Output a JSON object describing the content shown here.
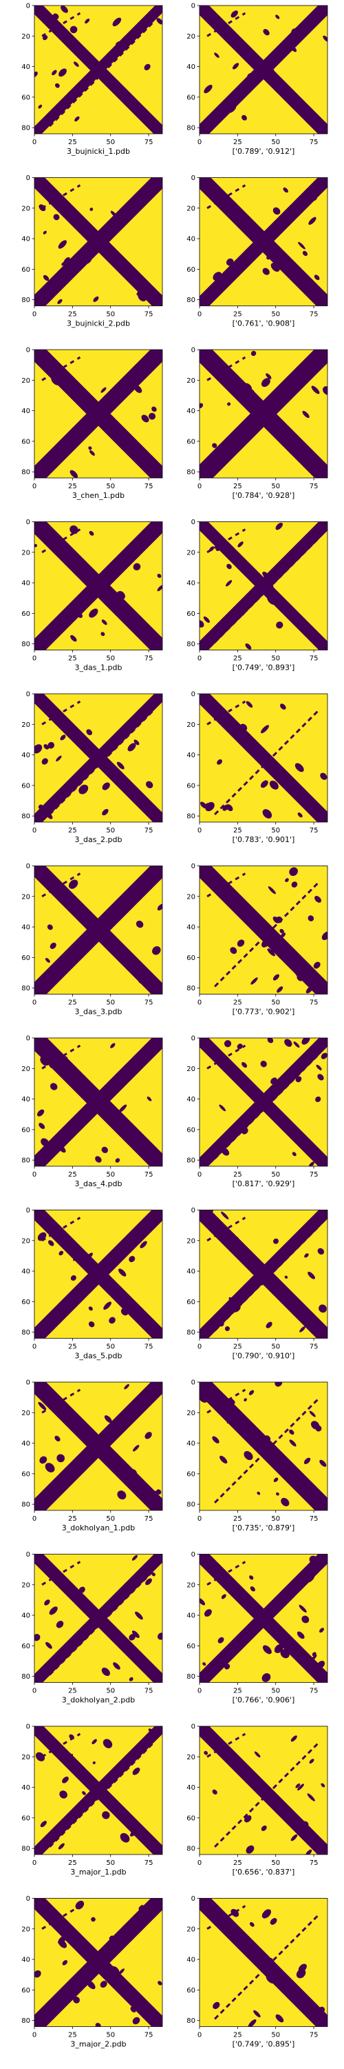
{
  "figure": {
    "yellow": "#fde725",
    "purple": "#440154"
  },
  "chart_data": [
    {
      "type": "heatmap",
      "label": "3_bujnicki_1.pdb",
      "xlim": [
        0,
        84
      ],
      "ylim": [
        84,
        0
      ],
      "x_ticks": [
        0,
        25,
        50,
        75
      ],
      "y_ticks": [
        0,
        20,
        40,
        60,
        80
      ]
    },
    {
      "type": "heatmap",
      "label": "['0.789', '0.912']",
      "xlim": [
        0,
        84
      ],
      "ylim": [
        84,
        0
      ],
      "x_ticks": [
        0,
        25,
        50,
        75
      ],
      "y_ticks": [
        0,
        20,
        40,
        60,
        80
      ]
    },
    {
      "type": "heatmap",
      "label": "3_bujnicki_2.pdb",
      "xlim": [
        0,
        84
      ],
      "ylim": [
        84,
        0
      ],
      "x_ticks": [
        0,
        25,
        50,
        75
      ],
      "y_ticks": [
        0,
        20,
        40,
        60,
        80
      ]
    },
    {
      "type": "heatmap",
      "label": "['0.761', '0.908']",
      "xlim": [
        0,
        84
      ],
      "ylim": [
        84,
        0
      ],
      "x_ticks": [
        0,
        25,
        50,
        75
      ],
      "y_ticks": [
        0,
        20,
        40,
        60,
        80
      ]
    },
    {
      "type": "heatmap",
      "label": "3_chen_1.pdb",
      "xlim": [
        0,
        84
      ],
      "ylim": [
        84,
        0
      ],
      "x_ticks": [
        0,
        25,
        50,
        75
      ],
      "y_ticks": [
        0,
        20,
        40,
        60,
        80
      ]
    },
    {
      "type": "heatmap",
      "label": "['0.784', '0.928']",
      "xlim": [
        0,
        84
      ],
      "ylim": [
        84,
        0
      ],
      "x_ticks": [
        0,
        25,
        50,
        75
      ],
      "y_ticks": [
        0,
        20,
        40,
        60,
        80
      ]
    },
    {
      "type": "heatmap",
      "label": "3_das_1.pdb",
      "xlim": [
        0,
        84
      ],
      "ylim": [
        84,
        0
      ],
      "x_ticks": [
        0,
        25,
        50,
        75
      ],
      "y_ticks": [
        0,
        20,
        40,
        60,
        80
      ]
    },
    {
      "type": "heatmap",
      "label": "['0.749', '0.893']",
      "xlim": [
        0,
        84
      ],
      "ylim": [
        84,
        0
      ],
      "x_ticks": [
        0,
        25,
        50,
        75
      ],
      "y_ticks": [
        0,
        20,
        40,
        60,
        80
      ]
    },
    {
      "type": "heatmap",
      "label": "3_das_2.pdb",
      "xlim": [
        0,
        84
      ],
      "ylim": [
        84,
        0
      ],
      "x_ticks": [
        0,
        25,
        50,
        75
      ],
      "y_ticks": [
        0,
        20,
        40,
        60,
        80
      ]
    },
    {
      "type": "heatmap",
      "label": "['0.783', '0.901']",
      "xlim": [
        0,
        84
      ],
      "ylim": [
        84,
        0
      ],
      "x_ticks": [
        0,
        25,
        50,
        75
      ],
      "y_ticks": [
        0,
        20,
        40,
        60,
        80
      ]
    },
    {
      "type": "heatmap",
      "label": "3_das_3.pdb",
      "xlim": [
        0,
        84
      ],
      "ylim": [
        84,
        0
      ],
      "x_ticks": [
        0,
        25,
        50,
        75
      ],
      "y_ticks": [
        0,
        20,
        40,
        60,
        80
      ]
    },
    {
      "type": "heatmap",
      "label": "['0.773', '0.902']",
      "xlim": [
        0,
        84
      ],
      "ylim": [
        84,
        0
      ],
      "x_ticks": [
        0,
        25,
        50,
        75
      ],
      "y_ticks": [
        0,
        20,
        40,
        60,
        80
      ]
    },
    {
      "type": "heatmap",
      "label": "3_das_4.pdb",
      "xlim": [
        0,
        84
      ],
      "ylim": [
        84,
        0
      ],
      "x_ticks": [
        0,
        25,
        50,
        75
      ],
      "y_ticks": [
        0,
        20,
        40,
        60,
        80
      ]
    },
    {
      "type": "heatmap",
      "label": "['0.817', '0.929']",
      "xlim": [
        0,
        84
      ],
      "ylim": [
        84,
        0
      ],
      "x_ticks": [
        0,
        25,
        50,
        75
      ],
      "y_ticks": [
        0,
        20,
        40,
        60,
        80
      ]
    },
    {
      "type": "heatmap",
      "label": "3_das_5.pdb",
      "xlim": [
        0,
        84
      ],
      "ylim": [
        84,
        0
      ],
      "x_ticks": [
        0,
        25,
        50,
        75
      ],
      "y_ticks": [
        0,
        20,
        40,
        60,
        80
      ]
    },
    {
      "type": "heatmap",
      "label": "['0.790', '0.910']",
      "xlim": [
        0,
        84
      ],
      "ylim": [
        84,
        0
      ],
      "x_ticks": [
        0,
        25,
        50,
        75
      ],
      "y_ticks": [
        0,
        20,
        40,
        60,
        80
      ]
    },
    {
      "type": "heatmap",
      "label": "3_dokholyan_1.pdb",
      "xlim": [
        0,
        84
      ],
      "ylim": [
        84,
        0
      ],
      "x_ticks": [
        0,
        25,
        50,
        75
      ],
      "y_ticks": [
        0,
        20,
        40,
        60,
        80
      ]
    },
    {
      "type": "heatmap",
      "label": "['0.735', '0.879']",
      "xlim": [
        0,
        84
      ],
      "ylim": [
        84,
        0
      ],
      "x_ticks": [
        0,
        25,
        50,
        75
      ],
      "y_ticks": [
        0,
        20,
        40,
        60,
        80
      ]
    },
    {
      "type": "heatmap",
      "label": "3_dokholyan_2.pdb",
      "xlim": [
        0,
        84
      ],
      "ylim": [
        84,
        0
      ],
      "x_ticks": [
        0,
        25,
        50,
        75
      ],
      "y_ticks": [
        0,
        20,
        40,
        60,
        80
      ]
    },
    {
      "type": "heatmap",
      "label": "['0.766', '0.906']",
      "xlim": [
        0,
        84
      ],
      "ylim": [
        84,
        0
      ],
      "x_ticks": [
        0,
        25,
        50,
        75
      ],
      "y_ticks": [
        0,
        20,
        40,
        60,
        80
      ]
    },
    {
      "type": "heatmap",
      "label": "3_major_1.pdb",
      "xlim": [
        0,
        84
      ],
      "ylim": [
        84,
        0
      ],
      "x_ticks": [
        0,
        25,
        50,
        75
      ],
      "y_ticks": [
        0,
        20,
        40,
        60,
        80
      ]
    },
    {
      "type": "heatmap",
      "label": "['0.656', '0.837']",
      "xlim": [
        0,
        84
      ],
      "ylim": [
        84,
        0
      ],
      "x_ticks": [
        0,
        25,
        50,
        75
      ],
      "y_ticks": [
        0,
        20,
        40,
        60,
        80
      ]
    },
    {
      "type": "heatmap",
      "label": "3_major_2.pdb",
      "xlim": [
        0,
        84
      ],
      "ylim": [
        84,
        0
      ],
      "x_ticks": [
        0,
        25,
        50,
        75
      ],
      "y_ticks": [
        0,
        20,
        40,
        60,
        80
      ]
    },
    {
      "type": "heatmap",
      "label": "['0.749', '0.895']",
      "xlim": [
        0,
        84
      ],
      "ylim": [
        84,
        0
      ],
      "x_ticks": [
        0,
        25,
        50,
        75
      ],
      "y_ticks": [
        0,
        20,
        40,
        60,
        80
      ]
    }
  ]
}
